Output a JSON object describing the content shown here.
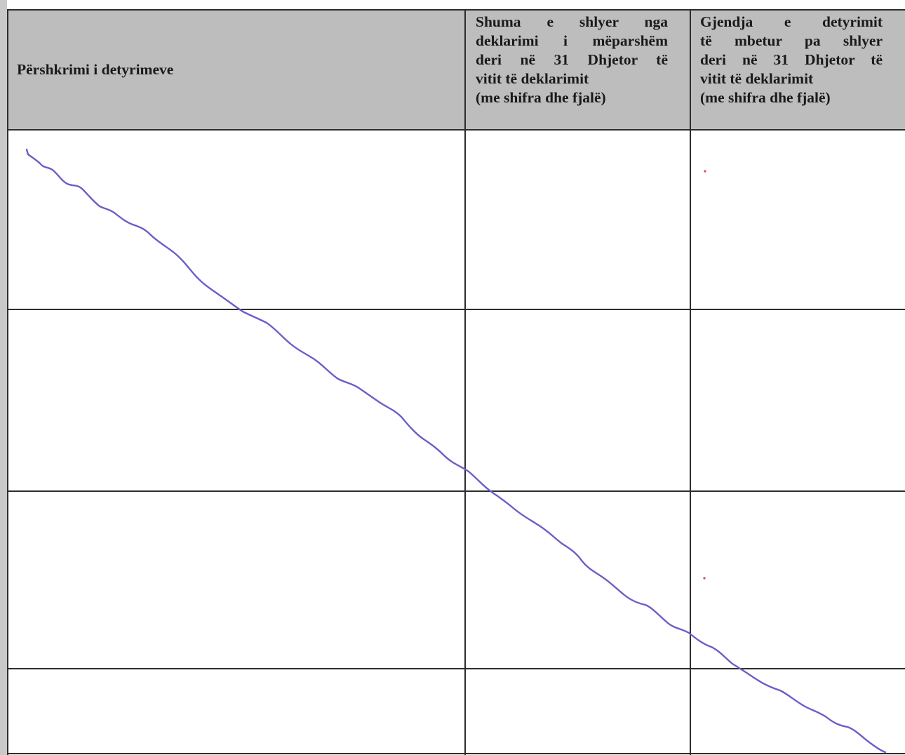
{
  "table": {
    "header": {
      "col1": "Përshkrimi i detyrimeve",
      "col2_lines": [
        "Shuma e shlyer nga",
        "deklarimi i mëparshëm",
        "deri në 31 Dhjetor të",
        "vitit të deklarimit",
        "(me shifra dhe fjalë)"
      ],
      "col3_lines": [
        "Gjendja e detyrimit",
        "të mbetur pa shlyer",
        "deri në 31 Dhjetor të",
        "vitit të deklarimit",
        "(me shifra dhe fjalë)"
      ]
    },
    "rows": [
      {
        "col1": "",
        "col2": "",
        "col3": ""
      },
      {
        "col1": "",
        "col2": "",
        "col3": ""
      },
      {
        "col1": "",
        "col2": "",
        "col3": ""
      },
      {
        "col1": "",
        "col2": "",
        "col3": ""
      }
    ]
  },
  "colors": {
    "header_background": "#bdbdbd",
    "grid_line": "#2d2d2d",
    "strike_line": "#6a5fc8"
  }
}
